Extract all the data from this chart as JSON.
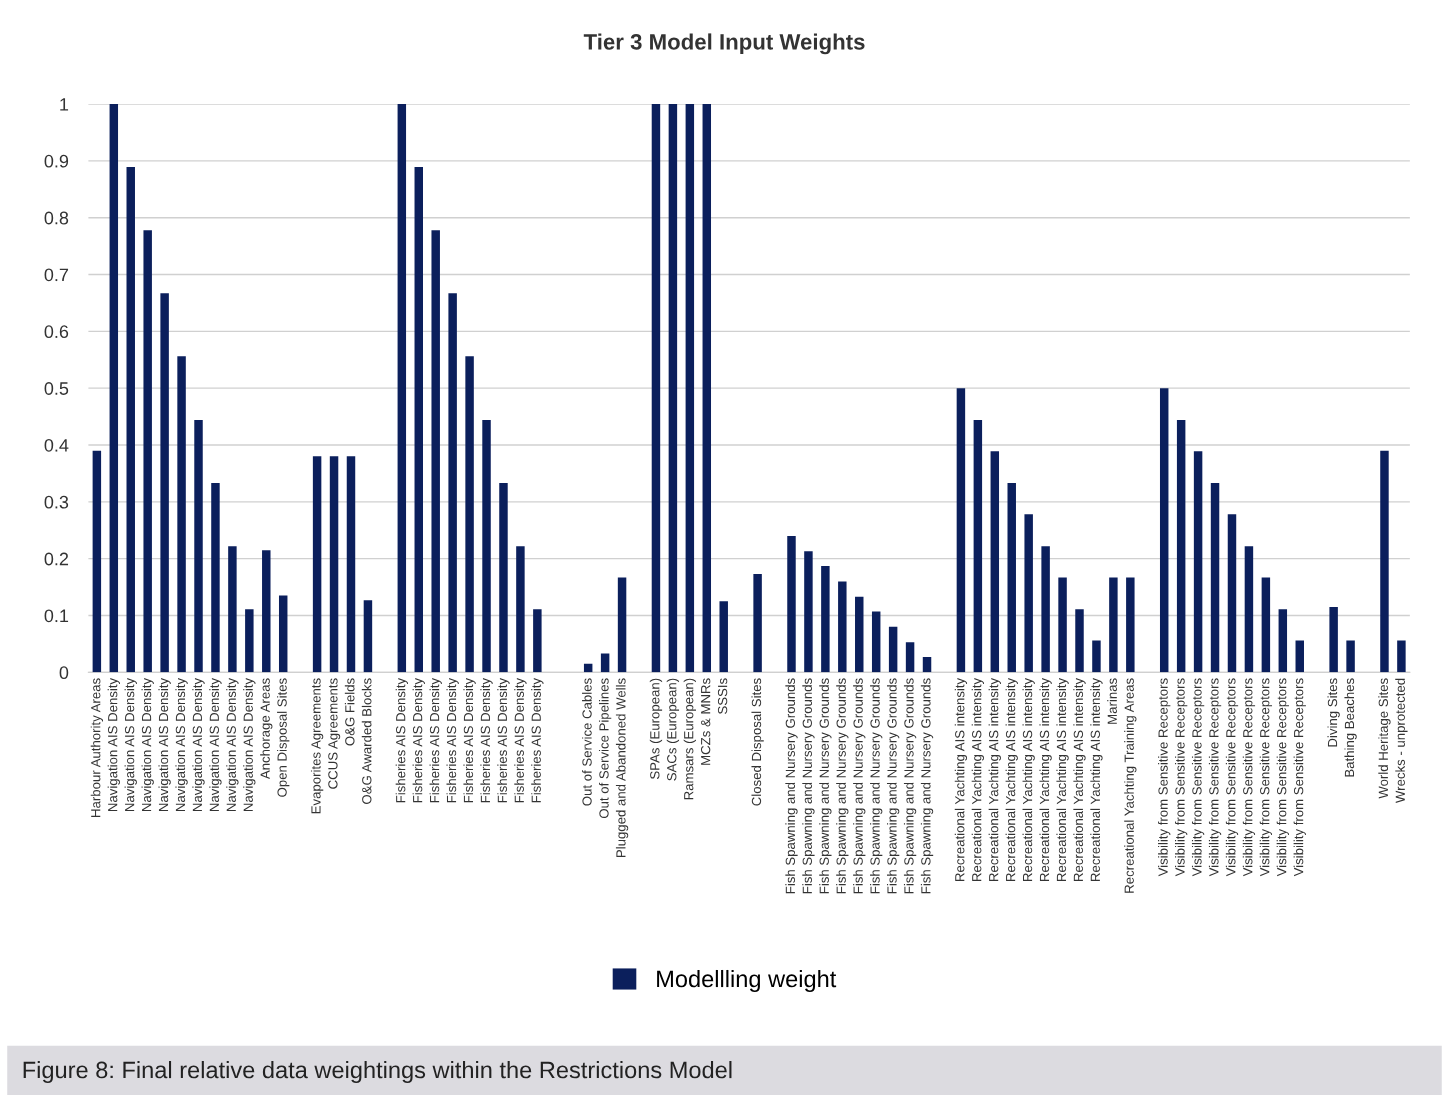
{
  "chart_data": {
    "type": "bar",
    "title": "Tier 3 Model Input Weights",
    "categories": [
      "Harbour Authority Areas",
      "Navigation AIS Density",
      "Navigation AIS Density",
      "Navigation AIS Density",
      "Navigation AIS Density",
      "Navigation AIS Density",
      "Navigation AIS Density",
      "Navigation AIS Density",
      "Navigation AIS Density",
      "Navigation AIS Density",
      "Anchorage Areas",
      "Open Disposal Sites",
      null,
      "Evaporites Agreements",
      "CCUS Agreements",
      "O&G Fields",
      "O&G Awarded Blocks",
      null,
      "Fisheries AIS Density",
      "Fisheries AIS Density",
      "Fisheries AIS Density",
      "Fisheries AIS Density",
      "Fisheries AIS Density",
      "Fisheries AIS Density",
      "Fisheries AIS Density",
      "Fisheries AIS Density",
      "Fisheries AIS Density",
      null,
      null,
      "Out of Service Cables",
      "Out of Service Pipelines",
      "Plugged and Abandoned Wells",
      null,
      "SPAs (European)",
      "SACs (European)",
      "Ramsars (European)",
      "MCZs & MNRs",
      "SSSIs",
      null,
      "Closed Disposal Sites",
      null,
      "Fish Spawning and Nursery Grounds",
      "Fish Spawning and Nursery Grounds",
      "Fish Spawning and Nursery Grounds",
      "Fish Spawning and Nursery Grounds",
      "Fish Spawning and Nursery Grounds",
      "Fish Spawning and Nursery Grounds",
      "Fish Spawning and Nursery Grounds",
      "Fish Spawning and Nursery Grounds",
      "Fish Spawning and Nursery Grounds",
      null,
      "Recreational Yachting AIS intensity",
      "Recreational Yachting AIS intensity",
      "Recreational Yachting AIS intensity",
      "Recreational Yachting AIS intensity",
      "Recreational Yachting AIS intensity",
      "Recreational Yachting AIS intensity",
      "Recreational Yachting AIS intensity",
      "Recreational Yachting AIS intensity",
      "Recreational Yachting AIS intensity",
      "Marinas",
      "Recreational Yachting Training Areas",
      null,
      "Visibility from Sensitive Receptors",
      "Visibility from Sensitive Receptors",
      "Visibility from Sensitive Receptors",
      "Visibility from Sensitive Receptors",
      "Visibility from Sensitive Receptors",
      "Visibility from Sensitive Receptors",
      "Visibility from Sensitive Receptors",
      "Visibility from Sensitive Receptors",
      "Visibility from Sensitive Receptors",
      null,
      "Diving Sites",
      "Bathing Beaches",
      null,
      "World Heritage Sites",
      "Wrecks - unprotected"
    ],
    "series": [
      {
        "name": "Modellling weight",
        "color": "#0b1f5c",
        "values": [
          0.39,
          1,
          0.889,
          0.778,
          0.667,
          0.556,
          0.444,
          0.333,
          0.222,
          0.111,
          0.215,
          0.135,
          null,
          0.38,
          0.38,
          0.38,
          0.127,
          null,
          1,
          0.889,
          0.778,
          0.667,
          0.556,
          0.444,
          0.333,
          0.222,
          0.111,
          null,
          null,
          0.015,
          0.033,
          0.167,
          null,
          1,
          1,
          1,
          1,
          0.125,
          null,
          0.173,
          null,
          0.24,
          0.213,
          0.187,
          0.16,
          0.133,
          0.107,
          0.08,
          0.053,
          0.027,
          null,
          0.5,
          0.444,
          0.389,
          0.333,
          0.278,
          0.222,
          0.167,
          0.111,
          0.056,
          0.167,
          0.167,
          null,
          0.5,
          0.444,
          0.389,
          0.333,
          0.278,
          0.222,
          0.167,
          0.111,
          0.056,
          null,
          0.115,
          0.056,
          null,
          0.39,
          0.056
        ]
      }
    ],
    "ylim": [
      0,
      1
    ],
    "yticks": [
      0,
      0.1,
      0.2,
      0.3,
      0.4,
      0.5,
      0.6,
      0.7,
      0.8,
      0.9,
      1
    ],
    "grid": "y",
    "legend": "bottom",
    "annotations": [
      "Figure 8: Final relative data weightings within the Restrictions Model"
    ]
  }
}
